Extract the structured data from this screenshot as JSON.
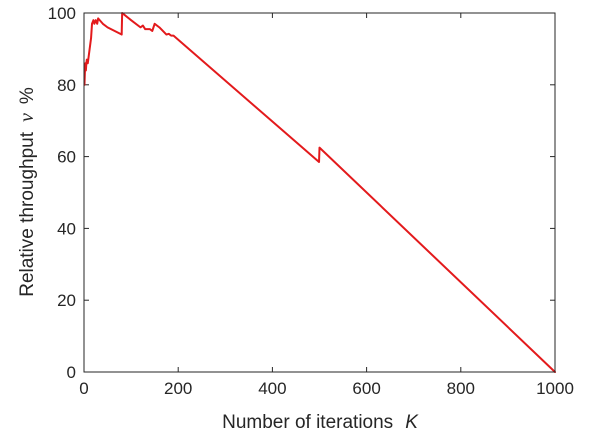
{
  "chart_data": {
    "type": "line",
    "title": "",
    "xlabel": "Number of iterations",
    "xlabel_symbol": "K",
    "ylabel": "Relative throughput",
    "ylabel_symbol": "ν",
    "ylabel_unit": "%",
    "xlim": [
      0,
      1000
    ],
    "ylim": [
      0,
      100
    ],
    "x_ticks": [
      0,
      200,
      400,
      600,
      800,
      1000
    ],
    "y_ticks": [
      0,
      20,
      40,
      60,
      80,
      100
    ],
    "x_tick_labels": [
      "0",
      "200",
      "400",
      "600",
      "800",
      "1000"
    ],
    "y_tick_labels": [
      "0",
      "20",
      "40",
      "60",
      "80",
      "100"
    ],
    "grid": false,
    "legend": "none",
    "series": [
      {
        "color": "#e31a1c",
        "x": [
          1,
          2,
          3,
          4,
          5,
          6,
          8,
          10,
          12,
          15,
          17,
          20,
          22,
          25,
          28,
          30,
          40,
          50,
          80,
          81,
          100,
          120,
          125,
          130,
          140,
          145,
          150,
          160,
          175,
          180,
          185,
          190,
          499,
          500,
          1000
        ],
        "y": [
          80,
          84,
          86,
          84,
          86,
          87,
          86,
          88,
          90,
          93,
          97,
          98,
          97,
          98,
          97,
          98.5,
          97,
          96,
          94,
          100,
          98,
          96,
          96.5,
          95.5,
          95.5,
          95,
          97,
          96,
          94,
          94.2,
          93.7,
          93.7,
          58.5,
          62.5,
          0
        ]
      }
    ]
  }
}
